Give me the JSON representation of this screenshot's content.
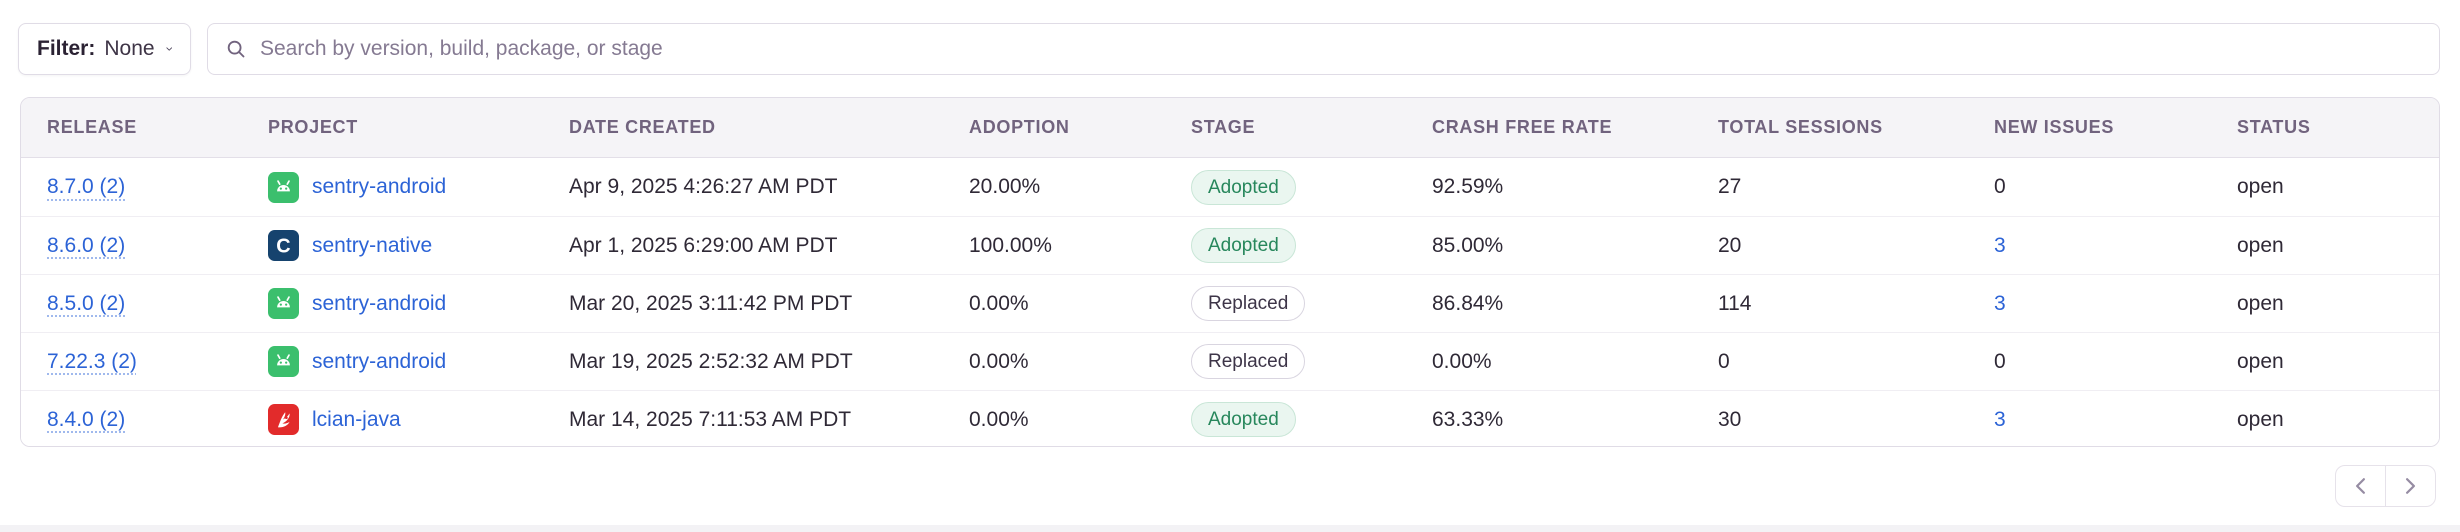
{
  "toolbar": {
    "filter_label": "Filter:",
    "filter_value": "None",
    "search_placeholder": "Search by version, build, package, or stage"
  },
  "table": {
    "columns": [
      "RELEASE",
      "PROJECT",
      "DATE CREATED",
      "ADOPTION",
      "STAGE",
      "CRASH FREE RATE",
      "TOTAL SESSIONS",
      "NEW ISSUES",
      "STATUS"
    ],
    "rows": [
      {
        "release": "8.7.0 (2)",
        "project": "sentry-android",
        "project_icon": "android-icon",
        "date_created": "Apr 9, 2025 4:26:27 AM PDT",
        "adoption": "20.00%",
        "stage": "Adopted",
        "stage_variant": "success",
        "crash_free_rate": "92.59%",
        "total_sessions": "27",
        "new_issues": "0",
        "new_issues_is_link": false,
        "status": "open"
      },
      {
        "release": "8.6.0 (2)",
        "project": "sentry-native",
        "project_icon": "c-icon",
        "date_created": "Apr 1, 2025 6:29:00 AM PDT",
        "adoption": "100.00%",
        "stage": "Adopted",
        "stage_variant": "success",
        "crash_free_rate": "85.00%",
        "total_sessions": "20",
        "new_issues": "3",
        "new_issues_is_link": true,
        "status": "open"
      },
      {
        "release": "8.5.0 (2)",
        "project": "sentry-android",
        "project_icon": "android-icon",
        "date_created": "Mar 20, 2025 3:11:42 PM PDT",
        "adoption": "0.00%",
        "stage": "Replaced",
        "stage_variant": "default",
        "crash_free_rate": "86.84%",
        "total_sessions": "114",
        "new_issues": "3",
        "new_issues_is_link": true,
        "status": "open"
      },
      {
        "release": "7.22.3 (2)",
        "project": "sentry-android",
        "project_icon": "android-icon",
        "date_created": "Mar 19, 2025 2:52:32 AM PDT",
        "adoption": "0.00%",
        "stage": "Replaced",
        "stage_variant": "default",
        "crash_free_rate": "0.00%",
        "total_sessions": "0",
        "new_issues": "0",
        "new_issues_is_link": false,
        "status": "open"
      },
      {
        "release": "8.4.0 (2)",
        "project": "lcian-java",
        "project_icon": "java-icon",
        "date_created": "Mar 14, 2025 7:11:53 AM PDT",
        "adoption": "0.00%",
        "stage": "Adopted",
        "stage_variant": "success",
        "crash_free_rate": "63.33%",
        "total_sessions": "30",
        "new_issues": "3",
        "new_issues_is_link": true,
        "status": "open"
      }
    ]
  },
  "pagination": {
    "previous_icon": "chevron-left-icon",
    "next_icon": "chevron-right-icon"
  },
  "colors": {
    "link_blue": "#2c63d6",
    "badge_success_text": "#27875c",
    "android_green": "#3bbf6d",
    "c_navy": "#16436e",
    "java_red": "#e22b2b",
    "header_text": "#71637e"
  }
}
